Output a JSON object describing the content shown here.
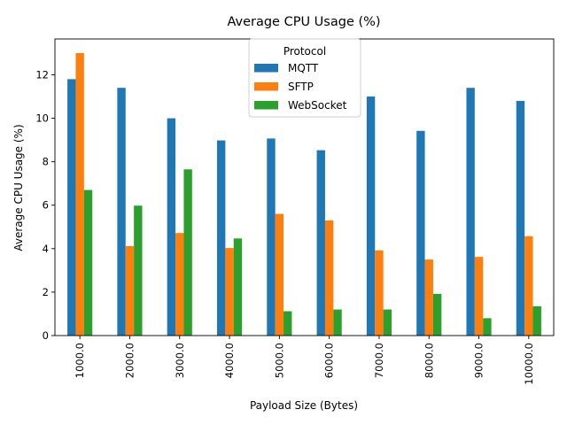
{
  "chart_data": {
    "type": "bar",
    "title": "Average CPU Usage (%)",
    "xlabel": "Payload Size (Bytes)",
    "ylabel": "Average CPU Usage (%)",
    "categories": [
      "1000.0",
      "2000.0",
      "3000.0",
      "4000.0",
      "5000.0",
      "6000.0",
      "7000.0",
      "8000.0",
      "9000.0",
      "10000.0"
    ],
    "ylim": [
      0,
      13.65
    ],
    "yticks": [
      0,
      2,
      4,
      6,
      8,
      10,
      12
    ],
    "grid": false,
    "legend": {
      "title": "Protocol",
      "placement": "top-center"
    },
    "series": [
      {
        "name": "MQTT",
        "color": "#1f77b4",
        "values": [
          11.8,
          11.4,
          10.0,
          8.98,
          9.07,
          8.53,
          11.0,
          9.42,
          11.4,
          10.8
        ]
      },
      {
        "name": "SFTP",
        "color": "#ff7f0e",
        "values": [
          13.0,
          4.12,
          4.72,
          4.03,
          5.6,
          5.3,
          3.92,
          3.5,
          3.62,
          4.57
        ]
      },
      {
        "name": "WebSocket",
        "color": "#2ca02c",
        "values": [
          6.7,
          5.98,
          7.65,
          4.47,
          1.12,
          1.2,
          1.2,
          1.92,
          0.8,
          1.35
        ]
      }
    ]
  }
}
